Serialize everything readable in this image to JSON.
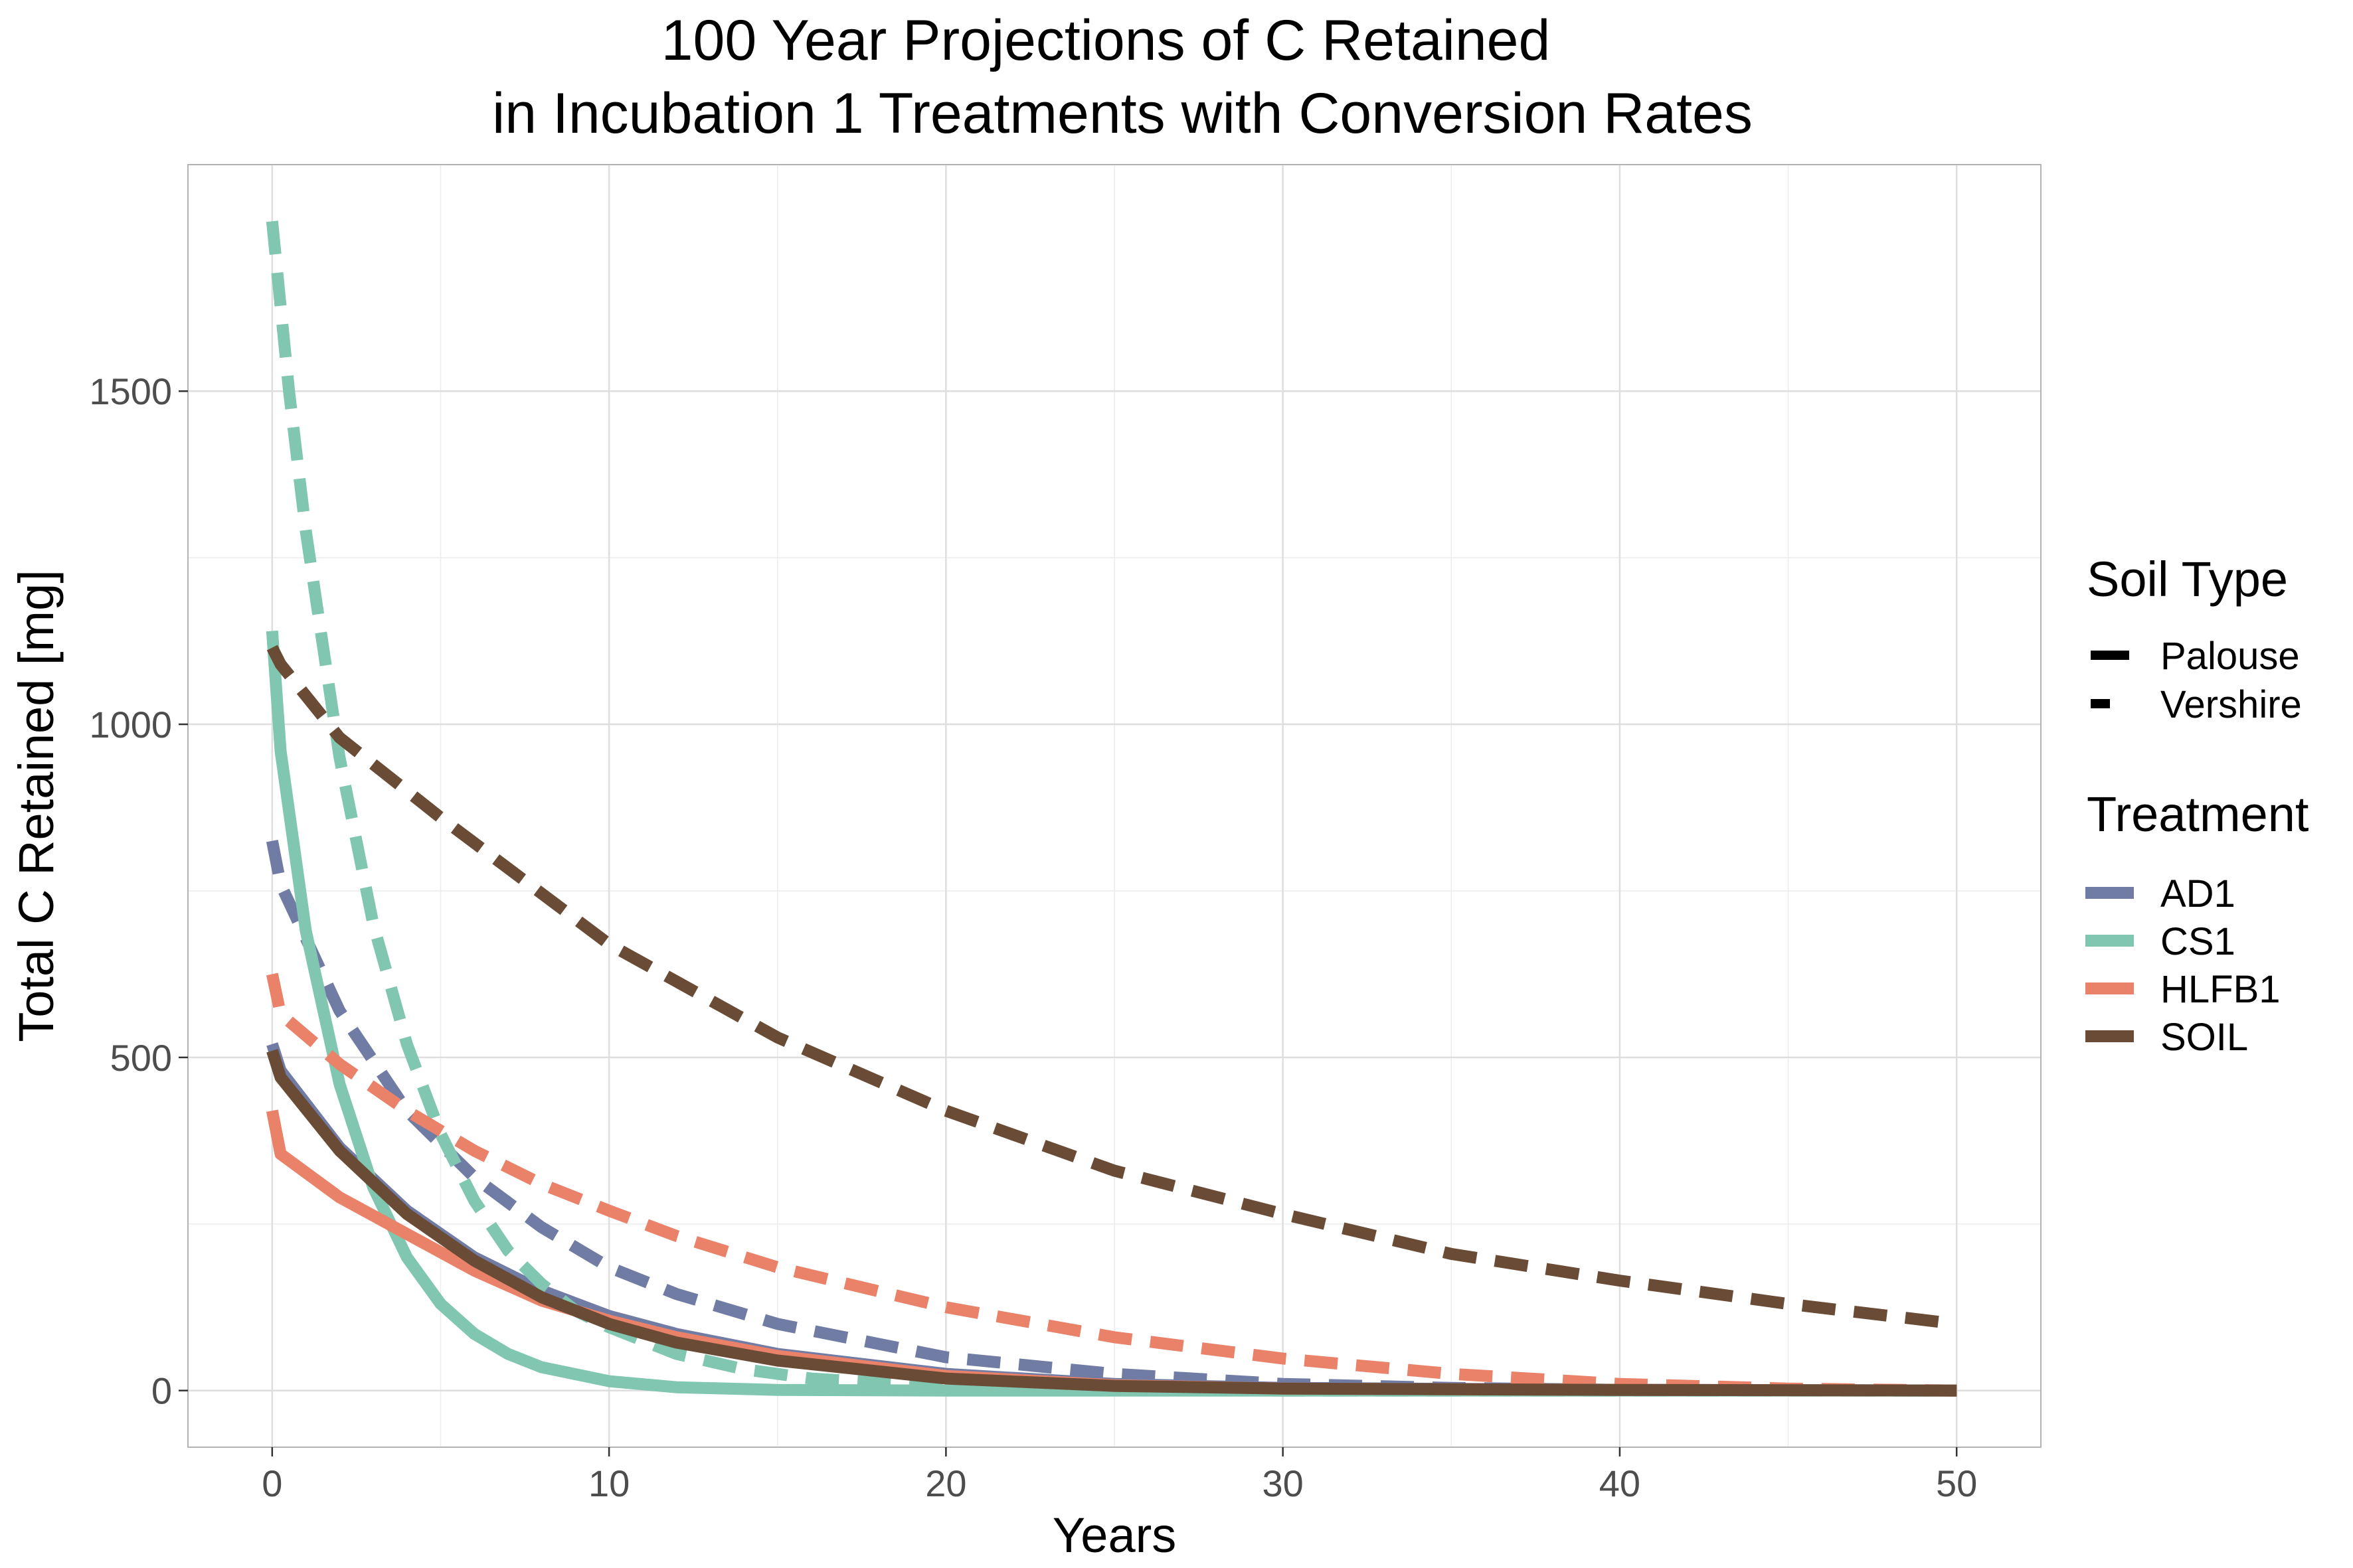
{
  "chart_data": {
    "type": "line",
    "title": [
      "100 Year Projections of C Retained",
      "in Incubation 1 Treatments with Conversion Rates"
    ],
    "xlabel": "Years",
    "ylabel": "Total C Retained [mg]",
    "xlim": [
      -2.5,
      52.5
    ],
    "ylim": [
      -85,
      1840
    ],
    "x_ticks": [
      0,
      10,
      20,
      30,
      40,
      50
    ],
    "y_ticks": [
      0,
      500,
      1000,
      1500
    ],
    "grid": true,
    "legend_position": "right",
    "legend": {
      "linetype_title": "Soil Type",
      "linetype_entries": [
        {
          "label": "Palouse",
          "dash": "solid"
        },
        {
          "label": "Vershire",
          "dash": "dashed"
        }
      ],
      "color_title": "Treatment",
      "color_entries": [
        {
          "label": "AD1",
          "color": "#717ca5"
        },
        {
          "label": "CS1",
          "color": "#80c6b0"
        },
        {
          "label": "HLFB1",
          "color": "#ea8169"
        },
        {
          "label": "SOIL",
          "color": "#6a4c36"
        }
      ]
    },
    "series": [
      {
        "treatment": "AD1",
        "soil": "Palouse",
        "color": "#717ca5",
        "dash": "solid",
        "x": [
          0,
          0.25,
          2,
          4,
          6,
          8,
          10,
          12,
          15,
          20,
          25,
          30,
          40,
          50
        ],
        "y": [
          520,
          480,
          365,
          270,
          200,
          150,
          112,
          85,
          55,
          25,
          10,
          4,
          1,
          0
        ]
      },
      {
        "treatment": "AD1",
        "soil": "Vershire",
        "color": "#717ca5",
        "dash": "dashed",
        "x": [
          0,
          0.25,
          2,
          4,
          6,
          8,
          10,
          12,
          15,
          20,
          25,
          30,
          35,
          40,
          50
        ],
        "y": [
          825,
          760,
          570,
          420,
          320,
          245,
          185,
          145,
          100,
          50,
          25,
          10,
          4,
          1,
          0
        ]
      },
      {
        "treatment": "CS1",
        "soil": "Palouse",
        "color": "#80c6b0",
        "dash": "solid",
        "x": [
          0,
          0.25,
          1,
          2,
          3,
          4,
          5,
          6,
          7,
          8,
          10,
          12,
          15,
          20,
          30,
          50
        ],
        "y": [
          1140,
          960,
          690,
          460,
          305,
          200,
          130,
          85,
          55,
          35,
          14,
          5,
          1,
          0,
          0,
          0
        ]
      },
      {
        "treatment": "CS1",
        "soil": "Vershire",
        "color": "#80c6b0",
        "dash": "dashed",
        "x": [
          0,
          0.5,
          1,
          2,
          3,
          4,
          5,
          6,
          7,
          8,
          9,
          10,
          12,
          14,
          16,
          20,
          25,
          30,
          40,
          50
        ],
        "y": [
          1755,
          1500,
          1290,
          950,
          700,
          520,
          385,
          285,
          210,
          160,
          120,
          95,
          55,
          32,
          18,
          6,
          1,
          0,
          0,
          0
        ]
      },
      {
        "treatment": "HLFB1",
        "soil": "Palouse",
        "color": "#ea8169",
        "dash": "solid",
        "x": [
          0,
          0.25,
          2,
          4,
          6,
          8,
          10,
          12,
          15,
          20,
          25,
          30,
          40,
          50
        ],
        "y": [
          420,
          355,
          290,
          235,
          180,
          135,
          105,
          80,
          52,
          22,
          8,
          3,
          1,
          0
        ]
      },
      {
        "treatment": "HLFB1",
        "soil": "Vershire",
        "color": "#ea8169",
        "dash": "dashed",
        "x": [
          0,
          0.25,
          2,
          4,
          6,
          8,
          10,
          12,
          15,
          20,
          25,
          30,
          35,
          40,
          45,
          50
        ],
        "y": [
          625,
          565,
          490,
          420,
          360,
          310,
          270,
          232,
          185,
          125,
          80,
          48,
          25,
          10,
          3,
          0
        ]
      },
      {
        "treatment": "SOIL",
        "soil": "Palouse",
        "color": "#6a4c36",
        "dash": "solid",
        "x": [
          0,
          0.25,
          2,
          4,
          6,
          8,
          10,
          12,
          15,
          20,
          25,
          30,
          40,
          50
        ],
        "y": [
          510,
          470,
          360,
          265,
          195,
          140,
          100,
          72,
          45,
          18,
          7,
          3,
          1,
          0
        ]
      },
      {
        "treatment": "SOIL",
        "soil": "Vershire",
        "color": "#6a4c36",
        "dash": "dashed",
        "x": [
          0,
          0.25,
          2,
          5,
          10,
          15,
          20,
          25,
          30,
          35,
          40,
          45,
          50
        ],
        "y": [
          1115,
          1090,
          980,
          860,
          670,
          530,
          420,
          330,
          265,
          205,
          165,
          130,
          100
        ]
      }
    ]
  }
}
